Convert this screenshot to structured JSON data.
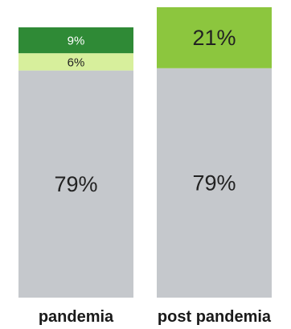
{
  "chart_data": {
    "type": "bar",
    "stacked": true,
    "normalized": true,
    "categories": [
      "pandemia",
      "post pandemia"
    ],
    "series": [
      {
        "values": [
          79,
          79
        ],
        "labels": [
          "79%",
          "79%"
        ],
        "color": "#c5c8cc"
      },
      {
        "values": [
          6,
          0
        ],
        "labels": [
          "6%",
          ""
        ],
        "color": "#d7ef9c"
      },
      {
        "values": [
          9,
          21
        ],
        "labels": [
          "9%",
          "21%"
        ],
        "colors": [
          "#2f8a36",
          "#8cc63e"
        ]
      }
    ],
    "ylim": [
      0,
      100
    ],
    "grid": false,
    "legend": "none",
    "title": "",
    "xlabel": "",
    "ylabel": ""
  }
}
